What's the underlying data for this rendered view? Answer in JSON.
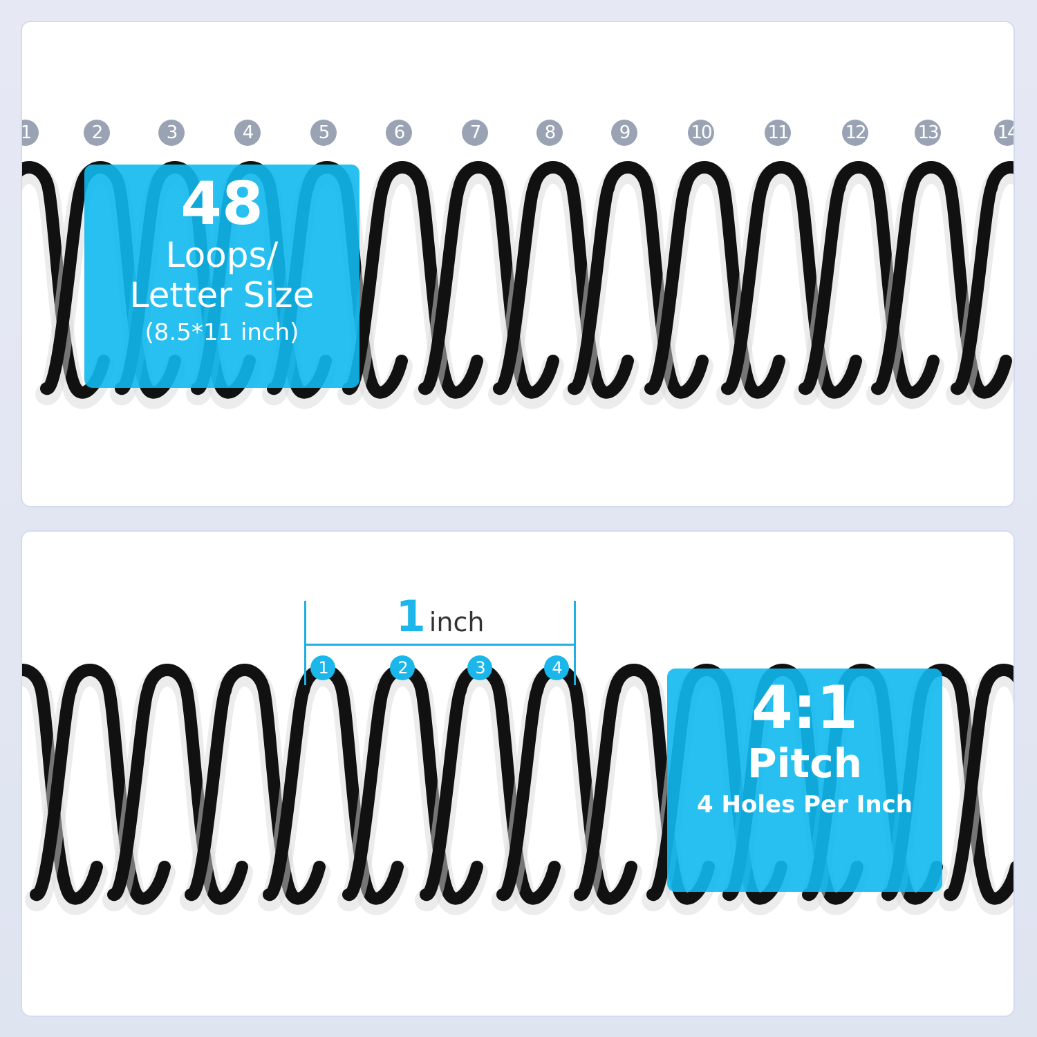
{
  "colors": {
    "accent": "#10b9f0",
    "number_gray": "#9aa3b3",
    "spring": "#111111"
  },
  "top_panel": {
    "loop_numbers": [
      "1",
      "2",
      "3",
      "4",
      "5",
      "6",
      "7",
      "8",
      "9",
      "10",
      "11",
      "12",
      "13",
      "14"
    ],
    "badge": {
      "value": "48",
      "line1": "Loops/",
      "line2": "Letter Size",
      "line3": "(8.5*11 inch)"
    }
  },
  "bottom_panel": {
    "ruler": {
      "value": "1",
      "unit": "inch"
    },
    "hole_numbers": [
      "1",
      "2",
      "3",
      "4"
    ],
    "badge": {
      "value": "4:1",
      "line1": "Pitch",
      "line2": "4 Holes Per Inch"
    }
  }
}
